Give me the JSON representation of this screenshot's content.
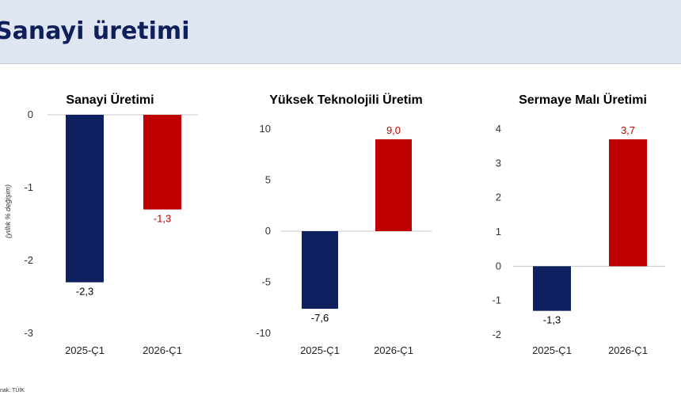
{
  "header": {
    "title": "Sanayi üretimi"
  },
  "ylabel": "(yıllık % değişim)",
  "source": "nak: TÜİK",
  "colors": {
    "navy": "#0f2060",
    "red": "#c00000",
    "header_bg": "#dfe5f1"
  },
  "chart_data": [
    {
      "type": "bar",
      "title": "Sanayi Üretimi",
      "categories": [
        "2025-Ç1",
        "2026-Ç1"
      ],
      "values": [
        -2.3,
        -1.3
      ],
      "value_labels": [
        "-2,3",
        "-1,3"
      ],
      "ylim": [
        -3,
        0
      ],
      "yticks": [
        0,
        -1,
        -2,
        -3
      ],
      "ytick_labels": [
        "0",
        "-1",
        "-2",
        "-3"
      ],
      "bar_colors": [
        "#0f2060",
        "#c00000"
      ],
      "label_colors": [
        "#000000",
        "#c00000"
      ]
    },
    {
      "type": "bar",
      "title": "Yüksek Teknolojili Üretim",
      "categories": [
        "2025-Ç1",
        "2026-Ç1"
      ],
      "values": [
        -7.6,
        9.0
      ],
      "value_labels": [
        "-7,6",
        "9,0"
      ],
      "ylim": [
        -10,
        10
      ],
      "yticks": [
        10,
        5,
        0,
        -5,
        -10
      ],
      "ytick_labels": [
        "10",
        "5",
        "0",
        "-5",
        "-10"
      ],
      "bar_colors": [
        "#0f2060",
        "#c00000"
      ],
      "label_colors": [
        "#000000",
        "#c00000"
      ]
    },
    {
      "type": "bar",
      "title": "Sermaye Malı Üretimi",
      "categories": [
        "2025-Ç1",
        "2026-Ç1"
      ],
      "values": [
        -1.3,
        3.7
      ],
      "value_labels": [
        "-1,3",
        "3,7"
      ],
      "ylim": [
        -2,
        4
      ],
      "yticks": [
        4,
        3,
        2,
        1,
        0,
        -1,
        -2
      ],
      "ytick_labels": [
        "4",
        "3",
        "2",
        "1",
        "0",
        "-1",
        "-2"
      ],
      "bar_colors": [
        "#0f2060",
        "#c00000"
      ],
      "label_colors": [
        "#000000",
        "#c00000"
      ]
    }
  ]
}
